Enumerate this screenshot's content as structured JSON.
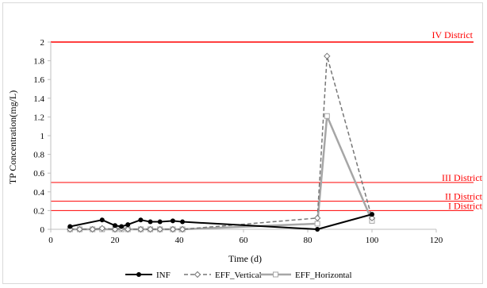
{
  "chart_data": {
    "type": "line",
    "title": "",
    "xlabel": "Time (d)",
    "ylabel": "TP Concentration(mg/L)",
    "xlim": [
      0,
      120
    ],
    "ylim": [
      0,
      2
    ],
    "xticks": [
      0,
      20,
      40,
      60,
      80,
      100,
      120
    ],
    "xtick_labels": [
      "0",
      "20",
      "40",
      "60",
      "80",
      "100",
      "120"
    ],
    "yticks": [
      0,
      0.2,
      0.4,
      0.6,
      0.8,
      1,
      1.2,
      1.4,
      1.6,
      1.8,
      2
    ],
    "ytick_labels": [
      "0",
      "0.2",
      "0.4",
      "0.6",
      "0.8",
      "1",
      "1.2",
      "1.4",
      "1.6",
      "1.8",
      "2"
    ],
    "grid": false,
    "legend_position": "bottom",
    "series": [
      {
        "name": "INF",
        "color": "#000000",
        "style": "solid",
        "marker": "circle",
        "x": [
          6,
          16,
          20,
          22,
          24,
          28,
          31,
          34,
          38,
          41,
          83,
          100
        ],
        "y": [
          0.03,
          0.1,
          0.04,
          0.03,
          0.05,
          0.1,
          0.08,
          0.08,
          0.09,
          0.08,
          0.0,
          0.16
        ]
      },
      {
        "name": "EFF_Vertical",
        "color": "#777777",
        "style": "dashed",
        "marker": "diamond-open",
        "x": [
          6,
          9,
          13,
          16,
          20,
          22,
          24,
          28,
          31,
          34,
          38,
          41,
          83,
          86,
          100
        ],
        "y": [
          0.0,
          0.0,
          0.0,
          0.01,
          0.0,
          0.01,
          0.0,
          0.0,
          0.0,
          0.0,
          0.0,
          0.0,
          0.12,
          1.85,
          0.12
        ]
      },
      {
        "name": "EFF_Horizontal",
        "color": "#a6a6a6",
        "style": "solid",
        "marker": "square-open",
        "x": [
          6,
          9,
          13,
          16,
          20,
          22,
          24,
          28,
          31,
          34,
          38,
          41,
          83,
          86,
          100
        ],
        "y": [
          0.0,
          0.0,
          0.0,
          0.0,
          0.0,
          0.0,
          0.0,
          0.0,
          0.0,
          0.0,
          0.0,
          0.0,
          0.06,
          1.21,
          0.09
        ]
      }
    ],
    "reference_lines": [
      {
        "label": "IV District",
        "value": 2.0,
        "color": "#ff0000"
      },
      {
        "label": "III District",
        "value": 0.5,
        "color": "#ff0000"
      },
      {
        "label": "II District",
        "value": 0.3,
        "color": "#ff0000"
      },
      {
        "label": "I District",
        "value": 0.2,
        "color": "#ff0000"
      }
    ]
  }
}
